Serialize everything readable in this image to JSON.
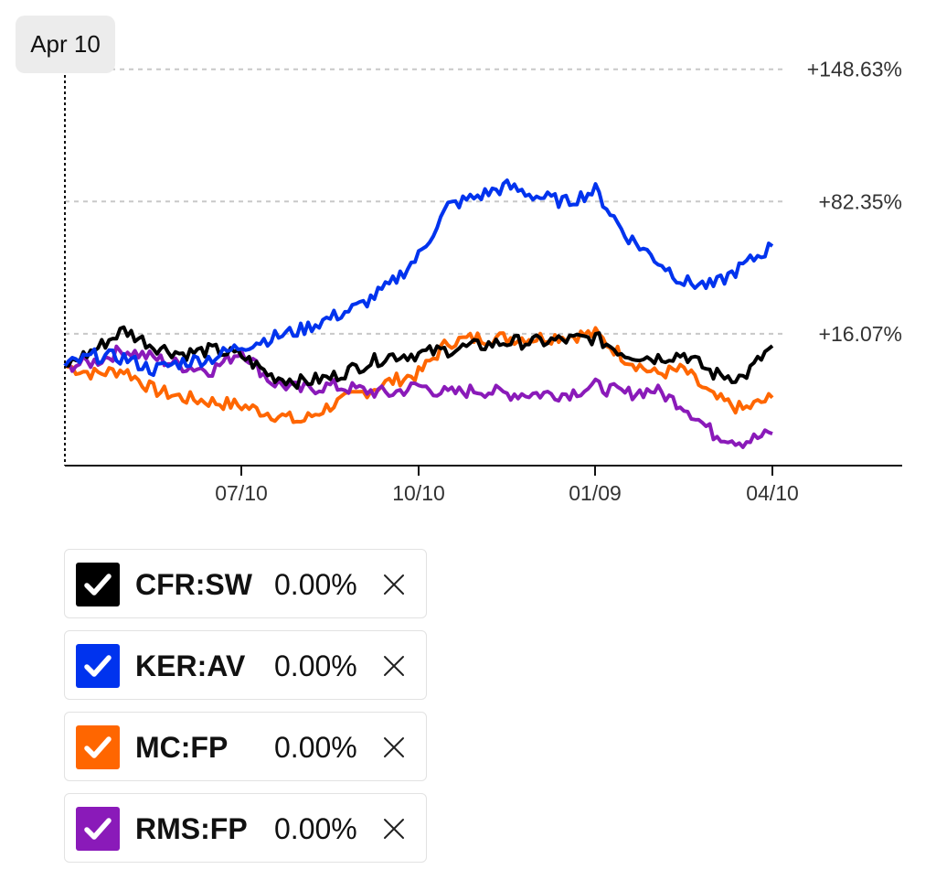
{
  "date_badge": "Apr 10",
  "legend": [
    {
      "symbol": "CFR:SW",
      "change": "0.00%",
      "color": "#000000",
      "check_icon": "check-icon",
      "remove_icon": "close-icon"
    },
    {
      "symbol": "KER:AV",
      "change": "0.00%",
      "color": "#0033ee",
      "check_icon": "check-icon",
      "remove_icon": "close-icon"
    },
    {
      "symbol": "MC:FP",
      "change": "0.00%",
      "color": "#ff6600",
      "check_icon": "check-icon",
      "remove_icon": "close-icon"
    },
    {
      "symbol": "RMS:FP",
      "change": "0.00%",
      "color": "#8a1ab9",
      "check_icon": "check-icon",
      "remove_icon": "close-icon"
    }
  ],
  "chart_data": {
    "type": "line",
    "title": "",
    "xlabel": "",
    "ylabel": "",
    "x_tick_labels": [
      "07/10",
      "10/10",
      "01/09",
      "04/10"
    ],
    "y_tick_labels": [
      "+148.63%",
      "+82.35%",
      "+16.07%"
    ],
    "y_ticks": [
      148.63,
      82.35,
      16.07
    ],
    "ylim": [
      -50,
      165
    ],
    "grid": "horizontal dashed",
    "series": [
      {
        "name": "CFR:SW",
        "color": "#000000",
        "x": [
          "04/10",
          "04/25",
          "05/10",
          "05/25",
          "06/10",
          "06/25",
          "07/10",
          "07/25",
          "08/10",
          "08/25",
          "09/10",
          "09/25",
          "10/10",
          "10/25",
          "11/10",
          "11/25",
          "12/10",
          "12/25",
          "01/09",
          "01/24",
          "02/10",
          "02/25",
          "03/10",
          "03/25",
          "04/10"
        ],
        "values": [
          0,
          8,
          18,
          10,
          6,
          8,
          5,
          -5,
          -8,
          -6,
          0,
          5,
          6,
          8,
          10,
          12,
          12,
          13,
          14,
          6,
          4,
          6,
          -4,
          -6,
          10
        ]
      },
      {
        "name": "KER:AV",
        "color": "#0033ee",
        "x": [
          "04/10",
          "04/25",
          "05/10",
          "05/25",
          "06/10",
          "06/25",
          "07/10",
          "07/25",
          "08/10",
          "08/25",
          "09/10",
          "09/25",
          "10/10",
          "10/25",
          "11/10",
          "11/25",
          "12/10",
          "12/25",
          "01/09",
          "01/24",
          "02/10",
          "02/25",
          "03/10",
          "03/25",
          "04/10"
        ],
        "values": [
          0,
          5,
          4,
          -2,
          2,
          4,
          10,
          14,
          18,
          24,
          30,
          40,
          55,
          80,
          85,
          90,
          85,
          82,
          88,
          66,
          54,
          42,
          40,
          50,
          60
        ]
      },
      {
        "name": "MC:FP",
        "color": "#ff6600",
        "x": [
          "04/10",
          "04/25",
          "05/10",
          "05/25",
          "06/10",
          "06/25",
          "07/10",
          "07/25",
          "08/10",
          "08/25",
          "09/10",
          "09/25",
          "10/10",
          "10/25",
          "11/10",
          "11/25",
          "12/10",
          "12/25",
          "01/09",
          "01/24",
          "02/10",
          "02/25",
          "03/10",
          "03/25",
          "04/10"
        ],
        "values": [
          0,
          -4,
          -2,
          -12,
          -16,
          -18,
          -20,
          -24,
          -28,
          -20,
          -14,
          -8,
          -4,
          12,
          14,
          14,
          14,
          15,
          16,
          4,
          -4,
          -2,
          -16,
          -22,
          -16
        ]
      },
      {
        "name": "RMS:FP",
        "color": "#8a1ab9",
        "x": [
          "04/10",
          "04/25",
          "05/10",
          "05/25",
          "06/10",
          "06/25",
          "07/10",
          "07/25",
          "08/10",
          "08/25",
          "09/10",
          "09/25",
          "10/10",
          "10/25",
          "11/10",
          "11/25",
          "12/10",
          "12/25",
          "01/09",
          "01/24",
          "02/10",
          "02/25",
          "03/10",
          "03/25",
          "04/10"
        ],
        "values": [
          0,
          2,
          8,
          4,
          0,
          -2,
          8,
          -8,
          -12,
          -10,
          -12,
          -14,
          -10,
          -14,
          -12,
          -14,
          -14,
          -14,
          -10,
          -14,
          -12,
          -20,
          -34,
          -38,
          -34
        ]
      }
    ]
  }
}
